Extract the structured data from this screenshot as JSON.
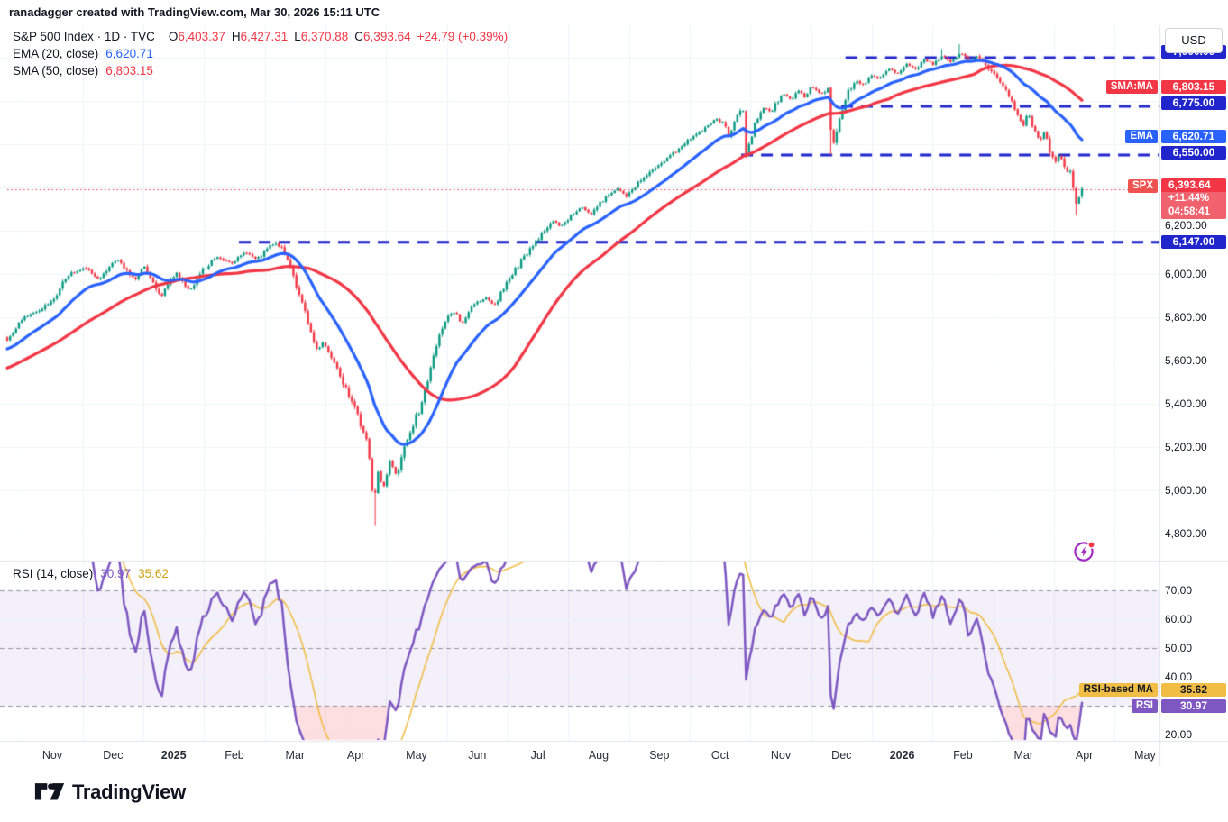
{
  "attribution": "ranadagger created with TradingView.com, Mar 30, 2026 15:11 UTC",
  "main_legend": {
    "title": "S&P 500 Index · 1D · TVC",
    "ohlc_items": [
      {
        "k": "O",
        "v": "6,403.37"
      },
      {
        "k": "H",
        "v": "6,427.31"
      },
      {
        "k": "L",
        "v": "6,370.88"
      },
      {
        "k": "C",
        "v": "6,393.64"
      }
    ],
    "change": "+24.79 (+0.39%)"
  },
  "ema_legend": {
    "label": "EMA (20, close)",
    "value": "6,620.71"
  },
  "sma_legend": {
    "label": "SMA (50, close)",
    "value": "6,803.15"
  },
  "rsi_legend": {
    "label": "RSI (14, close)",
    "rsi_value": "30.97",
    "ma_value": "35.62"
  },
  "axis": {
    "currency": "USD",
    "price_ticks": [
      "6,200.00",
      "6,000.00",
      "5,800.00",
      "5,600.00",
      "5,400.00",
      "5,200.00",
      "5,000.00",
      "4,800.00"
    ],
    "rsi_ticks": [
      "70.00",
      "60.00",
      "50.00",
      "40.00",
      "20.00"
    ]
  },
  "price_labels": {
    "sma": {
      "tag": "SMA:MA",
      "value": "6,803.15"
    },
    "ema": {
      "tag": "EMA",
      "value": "6,620.71"
    },
    "spx": {
      "tag": "SPX",
      "price": "6,393.64",
      "change_pct": "+11.44%",
      "countdown": "04:58:41"
    },
    "rsi_ma": {
      "tag": "RSI-based MA",
      "value": "35.62"
    },
    "rsi": {
      "tag": "RSI",
      "value": "30.97"
    }
  },
  "x_axis": {
    "labels": [
      "Nov",
      "Dec",
      "2025",
      "Feb",
      "Mar",
      "Apr",
      "May",
      "Jun",
      "Jul",
      "Aug",
      "Sep",
      "Oct",
      "Nov",
      "Dec",
      "2026",
      "Feb",
      "Mar",
      "Apr",
      "May"
    ]
  },
  "logo": {
    "text": "TradingView"
  },
  "chart_data": {
    "type": "candlestick",
    "symbol": "S&P 500 Index",
    "exchange": "TVC",
    "interval": "1D",
    "title": "S&P 500 Index · 1D · TVC",
    "num_candles": 369,
    "y_domain": [
      4675,
      7150
    ],
    "y_grid_step": 200,
    "rsi_domain": [
      17.8,
      80.3
    ],
    "rsi_guides": [
      70,
      50,
      30
    ],
    "rsi_grid": [
      60,
      40,
      20
    ],
    "current_price": 6393.64,
    "open": 6403.37,
    "high": 6427.31,
    "low": 6370.88,
    "close": 6393.64,
    "change": 24.79,
    "change_pct": 0.39,
    "indicators": {
      "ema": {
        "period": 20,
        "last": 6620.71,
        "color": "#2962ff"
      },
      "sma": {
        "period": 50,
        "last": 6803.15,
        "color": "#f23645"
      },
      "rsi": {
        "period": 14,
        "last": 30.97,
        "ma_last": 35.62,
        "color": "#7e57c2",
        "ma_color": "#f2bd45",
        "overbought": 70,
        "oversold": 30
      }
    },
    "levels": [
      {
        "price": 7000,
        "label": "7,000.00",
        "start_t": 0.78
      },
      {
        "price": 6775,
        "label": "6,775.00",
        "start_t": 0.776
      },
      {
        "price": 6550,
        "label": "6,550.00",
        "start_t": 0.683
      },
      {
        "price": 6147,
        "label": "6,147.00",
        "start_t": 0.2156
      }
    ],
    "colors": {
      "up": "#089981",
      "down": "#f23645",
      "level_line": "#2026cc",
      "price_line": "#f23645",
      "grid": "#f0f3fa",
      "band": "rgba(126,87,194,0.09)",
      "guide": "#9194a1",
      "oversold_fill": "rgba(242,54,69,0.16)"
    },
    "price_anchors": [
      [
        0,
        5692
      ],
      [
        0.0143,
        5800
      ],
      [
        0.031,
        5829
      ],
      [
        0.0436,
        5892
      ],
      [
        0.0562,
        5996
      ],
      [
        0.073,
        6029
      ],
      [
        0.0856,
        5975
      ],
      [
        0.1023,
        6067
      ],
      [
        0.1191,
        5975
      ],
      [
        0.1275,
        6038
      ],
      [
        0.1426,
        5892
      ],
      [
        0.1569,
        6008
      ],
      [
        0.1695,
        5925
      ],
      [
        0.1821,
        6017
      ],
      [
        0.1946,
        6079
      ],
      [
        0.2097,
        6050
      ],
      [
        0.2198,
        6100
      ],
      [
        0.2324,
        6067
      ],
      [
        0.245,
        6133
      ],
      [
        0.2508,
        6146
      ],
      [
        0.2601,
        6079
      ],
      [
        0.2701,
        5933
      ],
      [
        0.2802,
        5767
      ],
      [
        0.2886,
        5642
      ],
      [
        0.2936,
        5683
      ],
      [
        0.302,
        5621
      ],
      [
        0.3104,
        5517
      ],
      [
        0.3188,
        5433
      ],
      [
        0.3289,
        5308
      ],
      [
        0.3356,
        5225
      ],
      [
        0.3389,
        5017
      ],
      [
        0.3414,
        4954
      ],
      [
        0.3456,
        5100
      ],
      [
        0.3498,
        4996
      ],
      [
        0.3565,
        5142
      ],
      [
        0.3624,
        5058
      ],
      [
        0.3691,
        5204
      ],
      [
        0.3775,
        5308
      ],
      [
        0.3834,
        5371
      ],
      [
        0.3893,
        5475
      ],
      [
        0.396,
        5600
      ],
      [
        0.4019,
        5725
      ],
      [
        0.4086,
        5788
      ],
      [
        0.417,
        5829
      ],
      [
        0.4228,
        5767
      ],
      [
        0.4295,
        5829
      ],
      [
        0.4379,
        5871
      ],
      [
        0.4463,
        5892
      ],
      [
        0.453,
        5850
      ],
      [
        0.4614,
        5933
      ],
      [
        0.4698,
        5996
      ],
      [
        0.4782,
        6058
      ],
      [
        0.4866,
        6121
      ],
      [
        0.4925,
        6150
      ],
      [
        0.5008,
        6204
      ],
      [
        0.5092,
        6246
      ],
      [
        0.5151,
        6217
      ],
      [
        0.5235,
        6267
      ],
      [
        0.5344,
        6308
      ],
      [
        0.5428,
        6275
      ],
      [
        0.5512,
        6329
      ],
      [
        0.5596,
        6371
      ],
      [
        0.568,
        6392
      ],
      [
        0.5764,
        6358
      ],
      [
        0.5848,
        6413
      ],
      [
        0.5931,
        6454
      ],
      [
        0.6015,
        6483
      ],
      [
        0.6099,
        6517
      ],
      [
        0.6183,
        6550
      ],
      [
        0.6267,
        6592
      ],
      [
        0.6351,
        6621
      ],
      [
        0.6435,
        6650
      ],
      [
        0.6519,
        6683
      ],
      [
        0.6602,
        6717
      ],
      [
        0.6686,
        6683
      ],
      [
        0.6711,
        6633
      ],
      [
        0.677,
        6704
      ],
      [
        0.6829,
        6767
      ],
      [
        0.6854,
        6760
      ],
      [
        0.6871,
        6554
      ],
      [
        0.6921,
        6638
      ],
      [
        0.698,
        6721
      ],
      [
        0.7047,
        6775
      ],
      [
        0.7106,
        6746
      ],
      [
        0.7164,
        6800
      ],
      [
        0.7232,
        6829
      ],
      [
        0.7299,
        6800
      ],
      [
        0.7358,
        6850
      ],
      [
        0.7425,
        6817
      ],
      [
        0.7483,
        6871
      ],
      [
        0.7567,
        6829
      ],
      [
        0.7634,
        6858
      ],
      [
        0.7651,
        6845
      ],
      [
        0.7668,
        6575
      ],
      [
        0.7718,
        6658
      ],
      [
        0.7777,
        6767
      ],
      [
        0.7836,
        6850
      ],
      [
        0.7903,
        6892
      ],
      [
        0.797,
        6871
      ],
      [
        0.8029,
        6925
      ],
      [
        0.8112,
        6900
      ],
      [
        0.8196,
        6954
      ],
      [
        0.828,
        6925
      ],
      [
        0.8364,
        6975
      ],
      [
        0.8448,
        6942
      ],
      [
        0.8532,
        6996
      ],
      [
        0.8616,
        6967
      ],
      [
        0.87,
        7008
      ],
      [
        0.8783,
        6975
      ],
      [
        0.8867,
        7025
      ],
      [
        0.8951,
        6983
      ],
      [
        0.9035,
        7008
      ],
      [
        0.9119,
        6954
      ],
      [
        0.9203,
        6913
      ],
      [
        0.9262,
        6871
      ],
      [
        0.9329,
        6817
      ],
      [
        0.9396,
        6746
      ],
      [
        0.9455,
        6683
      ],
      [
        0.9497,
        6746
      ],
      [
        0.9555,
        6663
      ],
      [
        0.9606,
        6621
      ],
      [
        0.9648,
        6650
      ],
      [
        0.9706,
        6567
      ],
      [
        0.9748,
        6508
      ],
      [
        0.979,
        6558
      ],
      [
        0.9849,
        6467
      ],
      [
        0.9899,
        6467
      ],
      [
        0.9941,
        6308
      ],
      [
        0.9975,
        6360
      ],
      [
        1,
        6393.64
      ]
    ],
    "wick_lows": [
      [
        0.3414,
        4835
      ],
      [
        0.6871,
        6538
      ],
      [
        0.7668,
        6550
      ],
      [
        0.9941,
        6270
      ]
    ],
    "wick_highs": [
      [
        0.2508,
        6152
      ],
      [
        0.87,
        7040
      ],
      [
        0.8867,
        7062
      ]
    ]
  }
}
